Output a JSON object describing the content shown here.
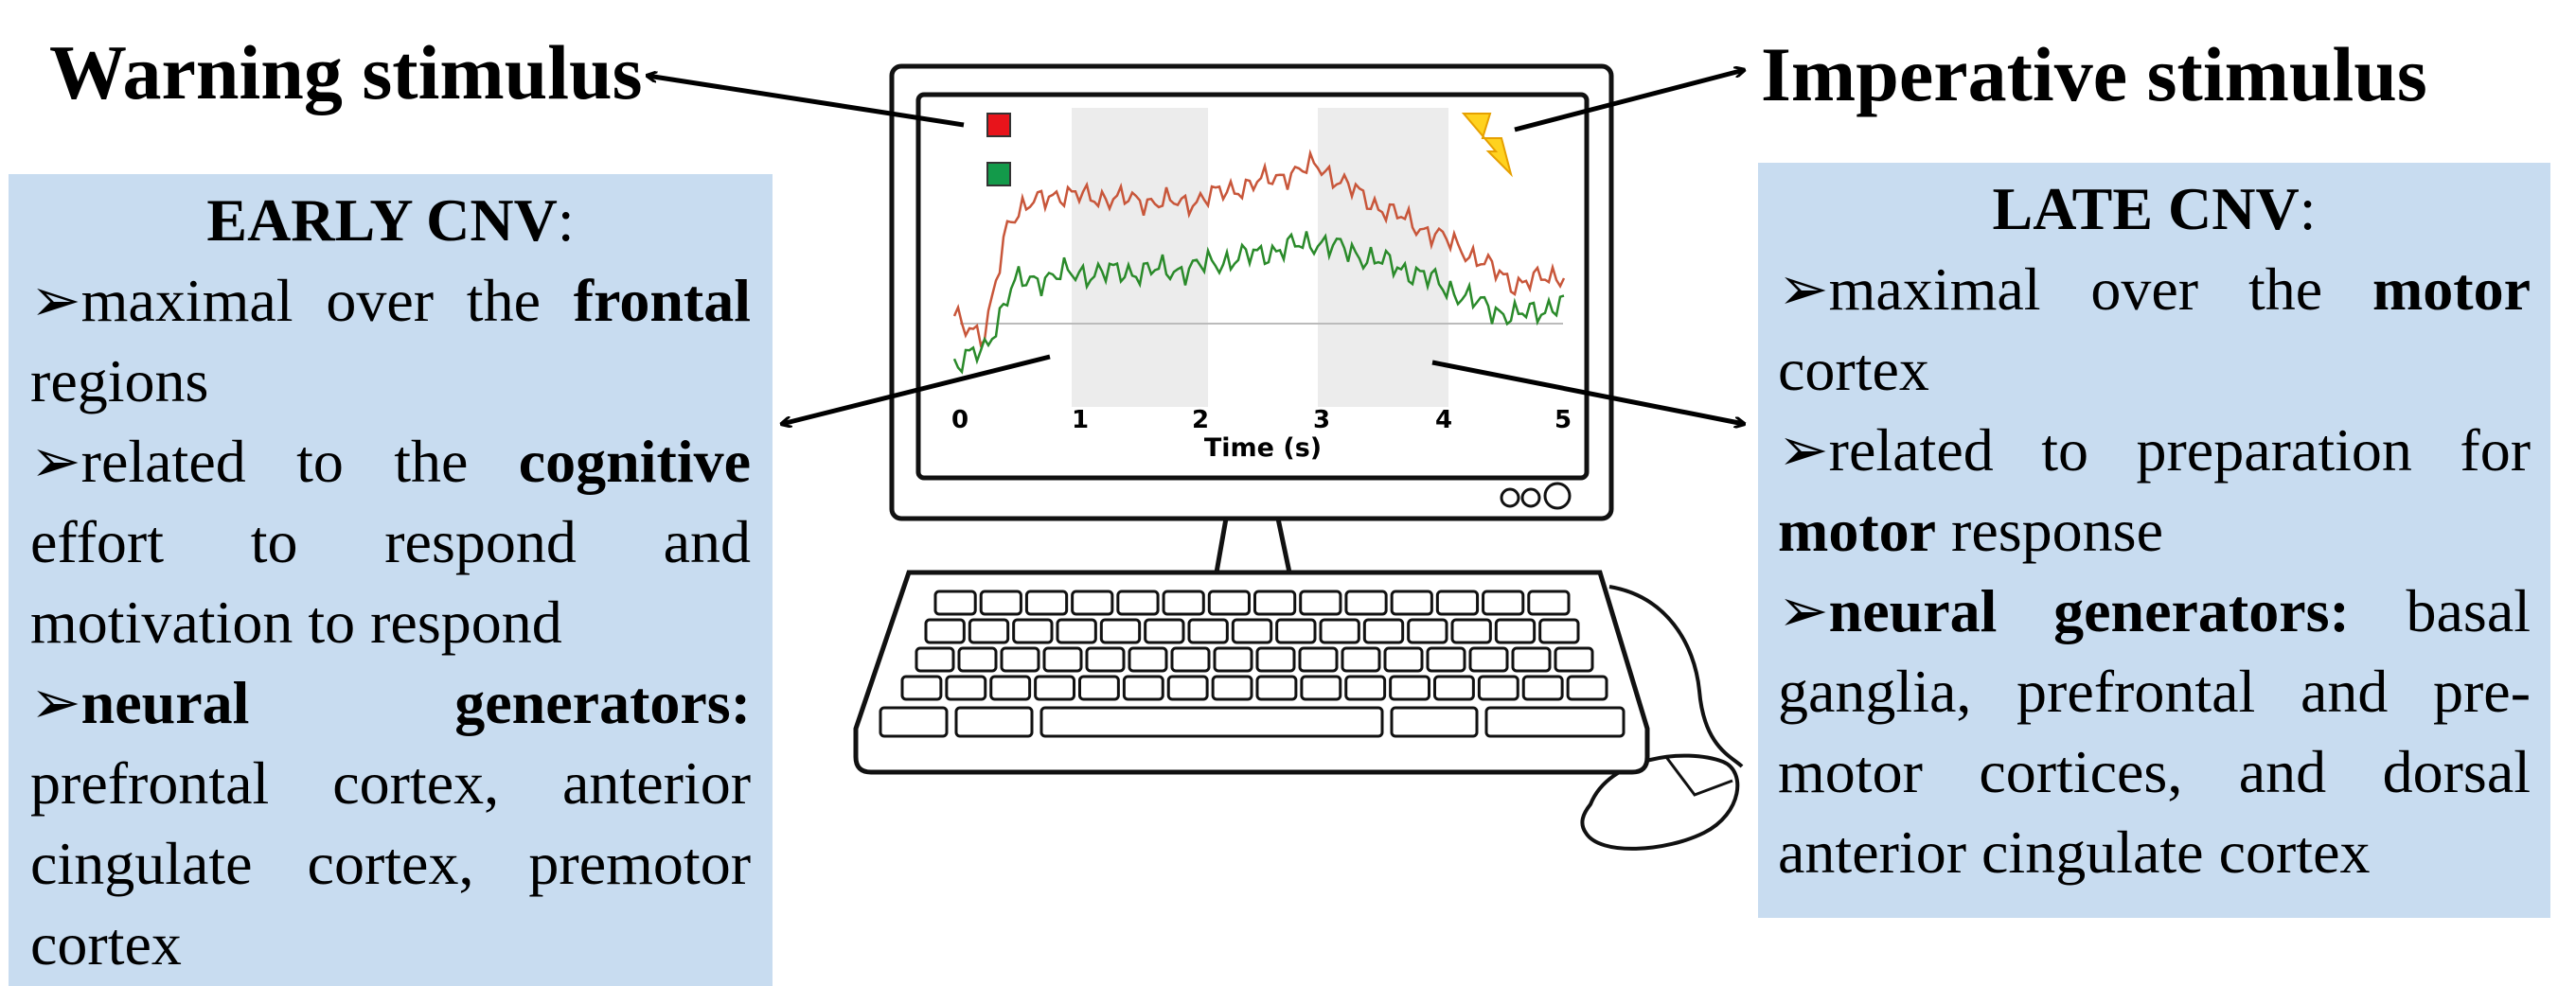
{
  "labels": {
    "warning": "Warning stimulus",
    "imperative": "Imperative stimulus"
  },
  "monitor": {
    "x_ticks": [
      0,
      1,
      2,
      3,
      4,
      5
    ],
    "x_label": "Time (s)"
  },
  "bullet_marker": "➢",
  "panels": [
    {
      "title": [
        {
          "text": "EARLY CNV",
          "bold": true
        },
        {
          "text": ":"
        }
      ],
      "bullets": [
        [
          {
            "text": "maximal over the "
          },
          {
            "text": "frontal",
            "bold": true
          },
          {
            "text": " regions"
          }
        ],
        [
          {
            "text": "related to the "
          },
          {
            "text": "cognitive",
            "bold": true
          },
          {
            "text": " effort to respond and motivation to respond"
          }
        ],
        [
          {
            "text": "neural generators:",
            "bold": true
          },
          {
            "text": " prefrontal cortex, anterior cingulate cortex, premotor cortex"
          }
        ]
      ]
    },
    {
      "title": [
        {
          "text": "LATE CNV",
          "bold": true
        },
        {
          "text": ":"
        }
      ],
      "bullets": [
        [
          {
            "text": "maximal over the "
          },
          {
            "text": "motor",
            "bold": true
          },
          {
            "text": " cortex"
          }
        ],
        [
          {
            "text": "related to preparation for "
          },
          {
            "text": "motor",
            "bold": true
          },
          {
            "text": " response"
          }
        ],
        [
          {
            "text": "neural generators:",
            "bold": true
          },
          {
            "text": " basal ganglia, prefrontal and pre-motor cortices, and dorsal anterior cingulate cortex"
          }
        ]
      ]
    }
  ]
}
